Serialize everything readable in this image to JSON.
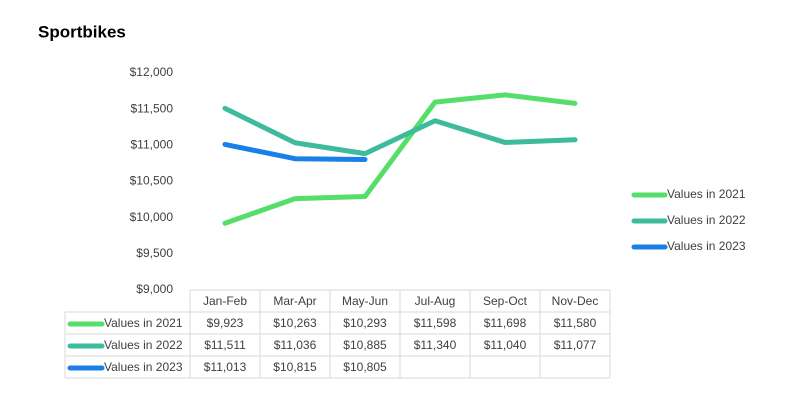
{
  "chart_data": {
    "type": "line",
    "title": "Sportbikes",
    "categories": [
      "Jan-Feb",
      "Mar-Apr",
      "May-Jun",
      "Jul-Aug",
      "Sep-Oct",
      "Nov-Dec"
    ],
    "series": [
      {
        "name": "Values in 2021",
        "color": "#56de6a",
        "values": [
          9923,
          10263,
          10293,
          11598,
          11698,
          11580
        ],
        "value_labels": [
          "$9,923",
          "$10,263",
          "$10,293",
          "$11,598",
          "$11,698",
          "$11,580"
        ]
      },
      {
        "name": "Values in 2022",
        "color": "#3dbb9c",
        "values": [
          11511,
          11036,
          10885,
          11340,
          11040,
          11077
        ],
        "value_labels": [
          "$11,511",
          "$11,036",
          "$10,885",
          "$11,340",
          "$11,040",
          "$11,077"
        ]
      },
      {
        "name": "Values in 2023",
        "color": "#1a7fe6",
        "values": [
          11013,
          10815,
          10805,
          null,
          null,
          null
        ],
        "value_labels": [
          "$11,013",
          "$10,815",
          "$10,805",
          null,
          null,
          null
        ]
      }
    ],
    "ylim": [
      9000,
      12000
    ],
    "yticks": [
      {
        "value": 9000,
        "label": "$9,000"
      },
      {
        "value": 9500,
        "label": "$9,500"
      },
      {
        "value": 10000,
        "label": "$10,000"
      },
      {
        "value": 10500,
        "label": "$10,500"
      },
      {
        "value": 11000,
        "label": "$11,000"
      },
      {
        "value": 11500,
        "label": "$11,500"
      },
      {
        "value": 12000,
        "label": "$12,000"
      }
    ],
    "legend": "right"
  }
}
